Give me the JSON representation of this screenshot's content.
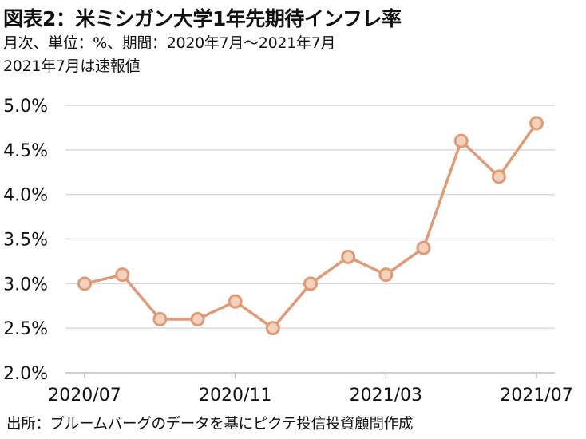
{
  "title": "図表2：米ミシガン大学1年先期待インフレ率",
  "subtitle_line1": "月次、単位：%、期間：2020年7月～2021年7月",
  "subtitle_line2": "2021年7月は速報値",
  "source": "出所：ブルームバーグのデータを基にピクテ投信投資顧問作成",
  "colors": {
    "series": "#E09B76",
    "marker_fill": "#F5D2BE",
    "grid": "#D9D9D9",
    "axis": "#BFBFBF"
  },
  "chart_data": {
    "type": "line",
    "title": "図表2：米ミシガン大学1年先期待インフレ率",
    "x": [
      "2020/07",
      "2020/08",
      "2020/09",
      "2020/10",
      "2020/11",
      "2020/12",
      "2021/01",
      "2021/02",
      "2021/03",
      "2021/04",
      "2021/05",
      "2021/06",
      "2021/07"
    ],
    "x_tick_labels": [
      "2020/07",
      "2020/11",
      "2021/03",
      "2021/07"
    ],
    "series": [
      {
        "values": [
          3.0,
          3.1,
          2.6,
          2.6,
          2.8,
          2.5,
          3.0,
          3.3,
          3.1,
          3.4,
          4.6,
          4.2,
          4.8
        ]
      }
    ],
    "ylim": [
      2.0,
      5.0
    ],
    "y_ticks": [
      "2.0%",
      "2.5%",
      "3.0%",
      "3.5%",
      "4.0%",
      "4.5%",
      "5.0%"
    ],
    "grid": "horizontal",
    "legend": "none",
    "markers": true
  }
}
